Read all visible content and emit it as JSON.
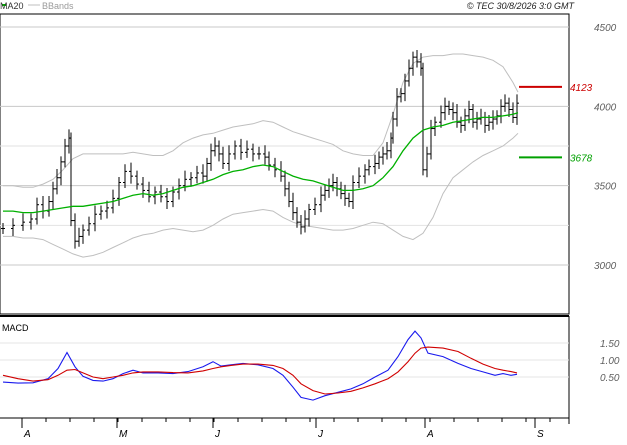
{
  "header": {
    "ma_label": "MA20",
    "bb_label": "BBands",
    "copyright": "© TEC 30/8/2026 3:0 GMT"
  },
  "colors": {
    "background": "#ffffff",
    "frame": "#000000",
    "grid": "#c8c8c8",
    "bars": "#000000",
    "ma": "#00b000",
    "bbands": "#bfbfbf",
    "resistance": "#cc0000",
    "support": "#00a000",
    "macd": "#1a1aee",
    "signal": "#d00000",
    "axis_text": "#606060"
  },
  "chart_data": [
    {
      "type": "line",
      "name": "price",
      "ylim": [
        2750,
        4750
      ],
      "y_ticks": [
        "4500",
        "4000",
        "3500",
        "3000"
      ],
      "x_ticks": [
        "A",
        "M",
        "J",
        "J",
        "A",
        "S"
      ],
      "levels": [
        {
          "label": "4123",
          "value": 4123,
          "color": "#cc0000"
        },
        {
          "label": "3678",
          "value": 3678,
          "color": "#00a000"
        }
      ],
      "price_path": [
        [
          0,
          3230
        ],
        [
          10,
          3250
        ],
        [
          20,
          3270
        ],
        [
          28,
          3290
        ],
        [
          34,
          3380
        ],
        [
          40,
          3340
        ],
        [
          46,
          3400
        ],
        [
          50,
          3480
        ],
        [
          54,
          3550
        ],
        [
          58,
          3650
        ],
        [
          62,
          3750
        ],
        [
          66,
          3800
        ],
        [
          68,
          3280
        ],
        [
          72,
          3150
        ],
        [
          76,
          3180
        ],
        [
          80,
          3220
        ],
        [
          86,
          3260
        ],
        [
          92,
          3320
        ],
        [
          98,
          3340
        ],
        [
          104,
          3360
        ],
        [
          110,
          3420
        ],
        [
          116,
          3520
        ],
        [
          122,
          3590
        ],
        [
          128,
          3560
        ],
        [
          134,
          3510
        ],
        [
          140,
          3470
        ],
        [
          146,
          3430
        ],
        [
          152,
          3460
        ],
        [
          158,
          3430
        ],
        [
          164,
          3400
        ],
        [
          170,
          3460
        ],
        [
          176,
          3500
        ],
        [
          182,
          3540
        ],
        [
          188,
          3550
        ],
        [
          194,
          3580
        ],
        [
          200,
          3560
        ],
        [
          204,
          3640
        ],
        [
          208,
          3720
        ],
        [
          212,
          3750
        ],
        [
          216,
          3700
        ],
        [
          220,
          3640
        ],
        [
          226,
          3700
        ],
        [
          232,
          3750
        ],
        [
          238,
          3710
        ],
        [
          244,
          3730
        ],
        [
          250,
          3700
        ],
        [
          256,
          3700
        ],
        [
          262,
          3680
        ],
        [
          266,
          3630
        ],
        [
          272,
          3600
        ],
        [
          278,
          3560
        ],
        [
          282,
          3480
        ],
        [
          286,
          3400
        ],
        [
          290,
          3330
        ],
        [
          294,
          3270
        ],
        [
          298,
          3240
        ],
        [
          302,
          3290
        ],
        [
          306,
          3350
        ],
        [
          312,
          3380
        ],
        [
          318,
          3440
        ],
        [
          322,
          3470
        ],
        [
          326,
          3500
        ],
        [
          330,
          3520
        ],
        [
          334,
          3480
        ],
        [
          338,
          3450
        ],
        [
          342,
          3420
        ],
        [
          346,
          3400
        ],
        [
          350,
          3520
        ],
        [
          356,
          3560
        ],
        [
          362,
          3600
        ],
        [
          366,
          3620
        ],
        [
          372,
          3640
        ],
        [
          376,
          3680
        ],
        [
          380,
          3700
        ],
        [
          384,
          3720
        ],
        [
          388,
          3800
        ],
        [
          390,
          3920
        ],
        [
          394,
          4060
        ],
        [
          398,
          4080
        ],
        [
          402,
          4160
        ],
        [
          406,
          4240
        ],
        [
          410,
          4310
        ],
        [
          414,
          4280
        ],
        [
          418,
          4240
        ],
        [
          420,
          3600
        ],
        [
          424,
          3700
        ],
        [
          428,
          3860
        ],
        [
          432,
          3900
        ],
        [
          438,
          3960
        ],
        [
          442,
          4000
        ],
        [
          446,
          3980
        ],
        [
          450,
          3960
        ],
        [
          454,
          3900
        ],
        [
          458,
          3880
        ],
        [
          462,
          3940
        ],
        [
          466,
          3980
        ],
        [
          470,
          3900
        ],
        [
          474,
          3920
        ],
        [
          478,
          3930
        ],
        [
          482,
          3880
        ],
        [
          486,
          3900
        ],
        [
          490,
          3920
        ],
        [
          494,
          3940
        ],
        [
          498,
          4000
        ],
        [
          502,
          4020
        ],
        [
          506,
          3980
        ],
        [
          510,
          3930
        ],
        [
          514,
          4020
        ]
      ],
      "series": [
        {
          "name": "MA20",
          "x": [
            0,
            10,
            20,
            30,
            40,
            50,
            60,
            70,
            80,
            90,
            100,
            110,
            120,
            130,
            140,
            150,
            160,
            170,
            180,
            190,
            200,
            210,
            220,
            230,
            240,
            250,
            260,
            270,
            280,
            290,
            300,
            310,
            320,
            330,
            340,
            350,
            360,
            370,
            380,
            390,
            400,
            410,
            420,
            430,
            440,
            450,
            460,
            470,
            480,
            490,
            500,
            510,
            515
          ],
          "y": [
            3340,
            3340,
            3330,
            3330,
            3340,
            3350,
            3360,
            3370,
            3370,
            3380,
            3390,
            3400,
            3420,
            3440,
            3450,
            3440,
            3450,
            3470,
            3490,
            3500,
            3520,
            3540,
            3570,
            3590,
            3600,
            3620,
            3630,
            3620,
            3590,
            3560,
            3540,
            3530,
            3510,
            3490,
            3470,
            3470,
            3480,
            3500,
            3550,
            3620,
            3720,
            3800,
            3850,
            3870,
            3880,
            3900,
            3910,
            3920,
            3930,
            3930,
            3940,
            3950,
            3960
          ]
        },
        {
          "name": "BBands upper",
          "x": [
            0,
            10,
            20,
            30,
            40,
            50,
            60,
            70,
            80,
            90,
            100,
            110,
            120,
            130,
            140,
            150,
            160,
            170,
            180,
            190,
            200,
            210,
            220,
            230,
            240,
            250,
            260,
            270,
            280,
            290,
            300,
            310,
            320,
            330,
            340,
            350,
            360,
            370,
            380,
            390,
            400,
            410,
            420,
            430,
            440,
            450,
            460,
            470,
            480,
            490,
            500,
            510,
            515
          ],
          "y": [
            3500,
            3500,
            3490,
            3490,
            3510,
            3540,
            3600,
            3670,
            3700,
            3700,
            3700,
            3700,
            3700,
            3710,
            3700,
            3690,
            3690,
            3720,
            3770,
            3800,
            3820,
            3830,
            3850,
            3870,
            3880,
            3890,
            3910,
            3900,
            3870,
            3840,
            3820,
            3800,
            3780,
            3760,
            3720,
            3700,
            3690,
            3690,
            3770,
            3950,
            4150,
            4270,
            4310,
            4320,
            4320,
            4330,
            4330,
            4320,
            4310,
            4290,
            4250,
            4150,
            4090
          ]
        },
        {
          "name": "BBands lower",
          "x": [
            0,
            10,
            20,
            30,
            40,
            50,
            60,
            70,
            80,
            90,
            100,
            110,
            120,
            130,
            140,
            150,
            160,
            170,
            180,
            190,
            200,
            210,
            220,
            230,
            240,
            250,
            260,
            270,
            280,
            290,
            300,
            310,
            320,
            330,
            340,
            350,
            360,
            370,
            380,
            390,
            400,
            410,
            420,
            430,
            440,
            450,
            460,
            470,
            480,
            490,
            500,
            510,
            515
          ],
          "y": [
            3180,
            3180,
            3170,
            3170,
            3160,
            3130,
            3100,
            3070,
            3050,
            3060,
            3080,
            3110,
            3140,
            3170,
            3190,
            3200,
            3220,
            3230,
            3220,
            3210,
            3220,
            3250,
            3290,
            3320,
            3330,
            3340,
            3350,
            3340,
            3300,
            3270,
            3250,
            3240,
            3230,
            3220,
            3220,
            3230,
            3250,
            3270,
            3260,
            3220,
            3180,
            3160,
            3200,
            3300,
            3450,
            3550,
            3600,
            3650,
            3690,
            3720,
            3750,
            3800,
            3830
          ]
        }
      ]
    },
    {
      "type": "line",
      "title": "MACD",
      "ylim": [
        0,
        2
      ],
      "y_ticks": [
        "1.50",
        "1.00",
        "0.50"
      ],
      "series": [
        {
          "name": "MACD",
          "x": [
            0,
            15,
            30,
            45,
            55,
            64,
            72,
            80,
            90,
            100,
            110,
            120,
            130,
            140,
            155,
            170,
            185,
            200,
            210,
            218,
            228,
            240,
            255,
            270,
            280,
            290,
            298,
            310,
            322,
            335,
            348,
            360,
            372,
            385,
            395,
            405,
            412,
            418,
            425,
            440,
            455,
            468,
            480,
            492,
            500,
            508,
            514
          ],
          "y": [
            0.35,
            0.32,
            0.33,
            0.45,
            0.75,
            1.22,
            0.8,
            0.52,
            0.4,
            0.38,
            0.45,
            0.6,
            0.7,
            0.62,
            0.62,
            0.6,
            0.66,
            0.8,
            0.95,
            0.82,
            0.86,
            0.9,
            0.86,
            0.75,
            0.55,
            0.2,
            -0.1,
            -0.18,
            -0.05,
            0.05,
            0.15,
            0.3,
            0.5,
            0.7,
            1.1,
            1.6,
            1.85,
            1.65,
            1.2,
            1.1,
            0.9,
            0.75,
            0.65,
            0.55,
            0.6,
            0.55,
            0.58
          ]
        },
        {
          "name": "Signal",
          "x": [
            0,
            15,
            30,
            45,
            55,
            64,
            72,
            80,
            90,
            100,
            110,
            120,
            130,
            140,
            155,
            170,
            185,
            200,
            210,
            218,
            228,
            240,
            255,
            270,
            280,
            290,
            298,
            310,
            322,
            335,
            348,
            360,
            372,
            385,
            395,
            405,
            412,
            418,
            425,
            440,
            455,
            468,
            480,
            492,
            500,
            508,
            514
          ],
          "y": [
            0.55,
            0.45,
            0.38,
            0.42,
            0.55,
            0.7,
            0.72,
            0.62,
            0.5,
            0.45,
            0.5,
            0.55,
            0.62,
            0.65,
            0.65,
            0.63,
            0.62,
            0.68,
            0.75,
            0.8,
            0.84,
            0.88,
            0.88,
            0.84,
            0.75,
            0.55,
            0.3,
            0.1,
            0.0,
            0.03,
            0.08,
            0.18,
            0.3,
            0.45,
            0.65,
            0.95,
            1.2,
            1.35,
            1.38,
            1.35,
            1.25,
            1.05,
            0.88,
            0.75,
            0.7,
            0.66,
            0.62
          ]
        }
      ]
    }
  ]
}
